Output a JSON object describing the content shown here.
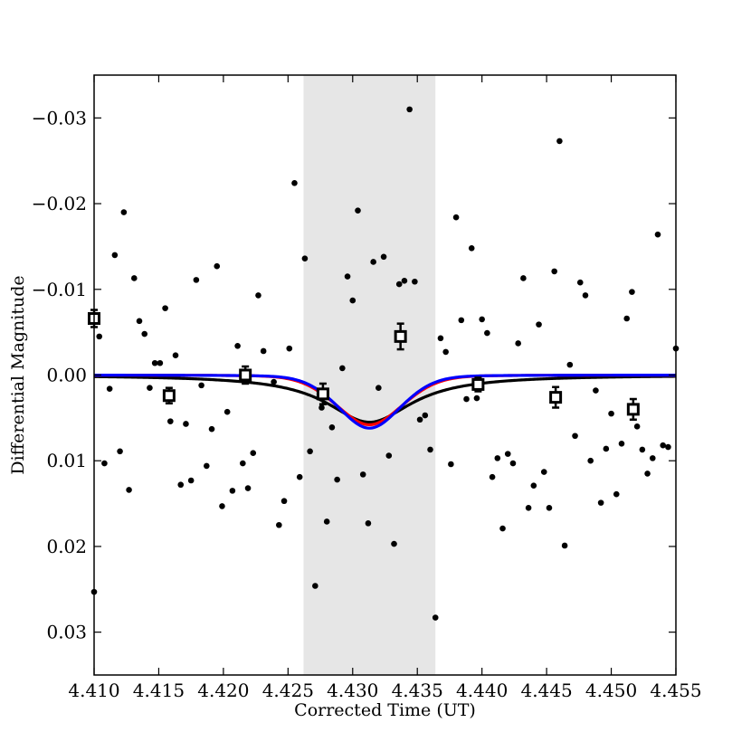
{
  "chart_data": {
    "type": "scatter",
    "title": "",
    "xlabel": "Corrected Time (UT)",
    "ylabel": "Differential Magnitude",
    "xlim": [
      4.41,
      4.455
    ],
    "ylim": [
      -0.035,
      0.035
    ],
    "y_inverted": true,
    "grid": false,
    "x_ticks": [
      4.41,
      4.415,
      4.42,
      4.425,
      4.43,
      4.435,
      4.44,
      4.445,
      4.45,
      4.455
    ],
    "x_tick_labels": [
      "4.410",
      "4.415",
      "4.420",
      "4.425",
      "4.430",
      "4.435",
      "4.440",
      "4.445",
      "4.450",
      "4.455"
    ],
    "y_ticks": [
      -0.03,
      -0.02,
      -0.01,
      0.0,
      0.01,
      0.02,
      0.03
    ],
    "y_tick_labels": [
      "−0.03",
      "−0.02",
      "−0.01",
      "0.00",
      "0.01",
      "0.02",
      "0.03"
    ],
    "shaded_region": {
      "x": [
        4.4262,
        4.4364
      ],
      "color": "#e6e6e6"
    },
    "colors": {
      "points": "#000000",
      "binned": "#000000",
      "model_black": "#000000",
      "model_red": "#ff0000",
      "model_blue": "#0000ff"
    },
    "points": [
      [
        4.41,
        0.0253
      ],
      [
        4.4104,
        -0.0045
      ],
      [
        4.4108,
        0.0103
      ],
      [
        4.4112,
        0.0016
      ],
      [
        4.4116,
        -0.014
      ],
      [
        4.412,
        0.0089
      ],
      [
        4.4123,
        -0.019
      ],
      [
        4.4127,
        0.0134
      ],
      [
        4.4131,
        -0.0113
      ],
      [
        4.4135,
        -0.0063
      ],
      [
        4.4139,
        -0.0048
      ],
      [
        4.4143,
        0.0015
      ],
      [
        4.4147,
        -0.0014
      ],
      [
        4.4151,
        -0.0014
      ],
      [
        4.4155,
        -0.0078
      ],
      [
        4.4159,
        0.0054
      ],
      [
        4.4163,
        -0.0023
      ],
      [
        4.4167,
        0.0128
      ],
      [
        4.4171,
        0.0057
      ],
      [
        4.4175,
        0.0123
      ],
      [
        4.4179,
        -0.0111
      ],
      [
        4.4183,
        0.0012
      ],
      [
        4.4187,
        0.0106
      ],
      [
        4.4191,
        0.0063
      ],
      [
        4.4195,
        -0.0127
      ],
      [
        4.4199,
        0.0153
      ],
      [
        4.4203,
        0.0043
      ],
      [
        4.4207,
        0.0135
      ],
      [
        4.4211,
        -0.0034
      ],
      [
        4.4215,
        0.0103
      ],
      [
        4.4219,
        0.0132
      ],
      [
        4.4223,
        0.0091
      ],
      [
        4.4227,
        -0.0093
      ],
      [
        4.4231,
        -0.0028
      ],
      [
        4.4239,
        0.0008
      ],
      [
        4.4243,
        0.0175
      ],
      [
        4.4247,
        0.0147
      ],
      [
        4.4251,
        -0.0031
      ],
      [
        4.4255,
        -0.0224
      ],
      [
        4.4259,
        0.0119
      ],
      [
        4.4263,
        -0.0136
      ],
      [
        4.4267,
        0.0089
      ],
      [
        4.4271,
        0.0246
      ],
      [
        4.4276,
        0.0038
      ],
      [
        4.428,
        0.0171
      ],
      [
        4.4284,
        0.0061
      ],
      [
        4.4288,
        0.0122
      ],
      [
        4.4292,
        -0.0008
      ],
      [
        4.4296,
        -0.0115
      ],
      [
        4.43,
        -0.0087
      ],
      [
        4.4304,
        -0.0192
      ],
      [
        4.4308,
        0.0116
      ],
      [
        4.4312,
        0.0173
      ],
      [
        4.4316,
        -0.0132
      ],
      [
        4.432,
        0.0015
      ],
      [
        4.4324,
        -0.0138
      ],
      [
        4.4328,
        0.0094
      ],
      [
        4.4332,
        0.0197
      ],
      [
        4.4336,
        -0.0106
      ],
      [
        4.434,
        -0.011
      ],
      [
        4.4344,
        -0.031
      ],
      [
        4.4348,
        -0.0109
      ],
      [
        4.4352,
        0.0052
      ],
      [
        4.4356,
        0.0047
      ],
      [
        4.436,
        0.0087
      ],
      [
        4.4364,
        0.0283
      ],
      [
        4.4368,
        -0.0043
      ],
      [
        4.4372,
        -0.0027
      ],
      [
        4.4376,
        0.0104
      ],
      [
        4.438,
        -0.0184
      ],
      [
        4.4384,
        -0.0064
      ],
      [
        4.4388,
        0.0028
      ],
      [
        4.4392,
        -0.0148
      ],
      [
        4.4396,
        0.0027
      ],
      [
        4.44,
        -0.0065
      ],
      [
        4.4404,
        -0.0049
      ],
      [
        4.4408,
        0.0119
      ],
      [
        4.4412,
        0.0097
      ],
      [
        4.4416,
        0.0179
      ],
      [
        4.442,
        0.0092
      ],
      [
        4.4424,
        0.0103
      ],
      [
        4.4428,
        -0.0037
      ],
      [
        4.4432,
        -0.0113
      ],
      [
        4.4436,
        0.0155
      ],
      [
        4.444,
        0.0129
      ],
      [
        4.4444,
        -0.0059
      ],
      [
        4.4448,
        0.0113
      ],
      [
        4.4452,
        0.0155
      ],
      [
        4.4456,
        -0.0121
      ],
      [
        4.446,
        -0.0273
      ],
      [
        4.4464,
        0.0199
      ],
      [
        4.4468,
        -0.0012
      ],
      [
        4.4472,
        0.0071
      ],
      [
        4.4476,
        -0.0108
      ],
      [
        4.448,
        -0.0093
      ],
      [
        4.4484,
        0.01
      ],
      [
        4.4488,
        0.0018
      ],
      [
        4.4492,
        0.0149
      ],
      [
        4.4496,
        0.0086
      ],
      [
        4.45,
        0.0045
      ],
      [
        4.4504,
        0.0139
      ],
      [
        4.4508,
        0.008
      ],
      [
        4.4512,
        -0.0066
      ],
      [
        4.4516,
        -0.0097
      ],
      [
        4.452,
        0.006
      ],
      [
        4.4524,
        0.0087
      ],
      [
        4.4528,
        0.0115
      ],
      [
        4.4532,
        0.0097
      ],
      [
        4.4536,
        -0.0164
      ],
      [
        4.454,
        0.0082
      ],
      [
        4.4544,
        0.0084
      ],
      [
        4.455,
        -0.0031
      ]
    ],
    "binned": [
      {
        "x": 4.41,
        "y": -0.0066,
        "err": 0.001
      },
      {
        "x": 4.4158,
        "y": 0.0024,
        "err": 0.0009
      },
      {
        "x": 4.4217,
        "y": 0.0,
        "err": 0.001
      },
      {
        "x": 4.4277,
        "y": 0.0022,
        "err": 0.0012
      },
      {
        "x": 4.4337,
        "y": -0.0045,
        "err": 0.0015
      },
      {
        "x": 4.4397,
        "y": 0.0011,
        "err": 0.0008
      },
      {
        "x": 4.4457,
        "y": 0.0026,
        "err": 0.0012
      },
      {
        "x": 4.4517,
        "y": 0.004,
        "err": 0.0012
      }
    ],
    "models": [
      {
        "color": "black",
        "center": 4.4313,
        "depth": 0.0055,
        "width": 0.0042,
        "shape": "wide"
      },
      {
        "color": "red",
        "center": 4.4313,
        "depth": 0.0058,
        "width": 0.0032,
        "shape": "mid"
      },
      {
        "color": "blue",
        "center": 4.4313,
        "depth": 0.0062,
        "width": 0.003,
        "shape": "narrow"
      }
    ]
  }
}
